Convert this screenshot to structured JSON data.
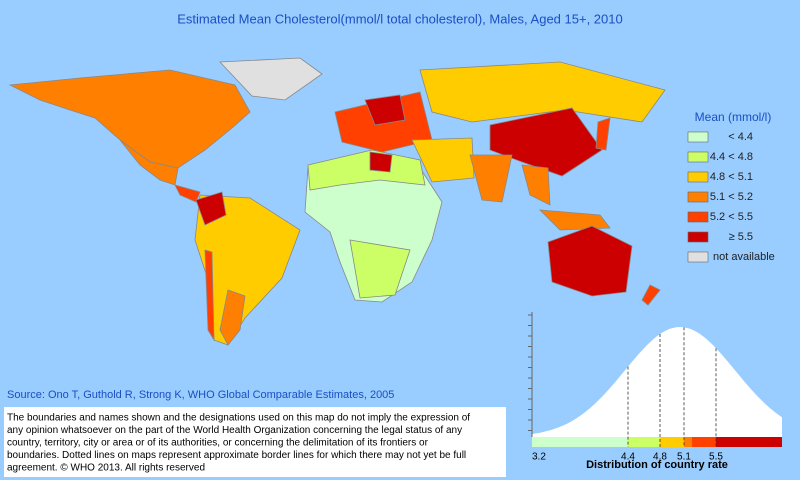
{
  "title": "Estimated Mean Cholesterol(mmol/l total cholesterol), Males, Aged 15+, 2010",
  "legend": {
    "title": "Mean (mmol/l)",
    "items": [
      {
        "label": "< 4.4",
        "color": "#ccffcc"
      },
      {
        "label": "4.4 < 4.8",
        "color": "#ccff66"
      },
      {
        "label": "4.8 < 5.1",
        "color": "#ffcc00"
      },
      {
        "label": "5.1 < 5.2",
        "color": "#ff8000"
      },
      {
        "label": "5.2 < 5.5",
        "color": "#ff4000"
      },
      {
        "label": "≥ 5.5",
        "color": "#cc0000"
      },
      {
        "label": "not available",
        "color": "#e0e0e0"
      }
    ]
  },
  "source": "Source: Ono T, Guthold R, Strong K, WHO Global Comparable Estimates, 2005",
  "disclaimer": [
    "The boundaries and names shown and the designations used on this map do not imply the expression of",
    "any opinion whatsoever on the part of the World Health Organization concerning the legal status of any",
    "country, territory, city or area or of its authorities, or concerning the delimitation of its frontiers or",
    "boundaries. Dotted lines on maps represent approximate border lines for which there may not yet be full",
    "agreement. © WHO 2013. All rights reserved"
  ],
  "distribution": {
    "label": "Distribution of country rate",
    "xlim": [
      3.2,
      6.325
    ],
    "xticks": [
      3.2,
      4.4,
      4.8,
      5.1,
      5.5
    ],
    "breaks": [
      4.4,
      4.8,
      5.1,
      5.2,
      5.5
    ]
  }
}
